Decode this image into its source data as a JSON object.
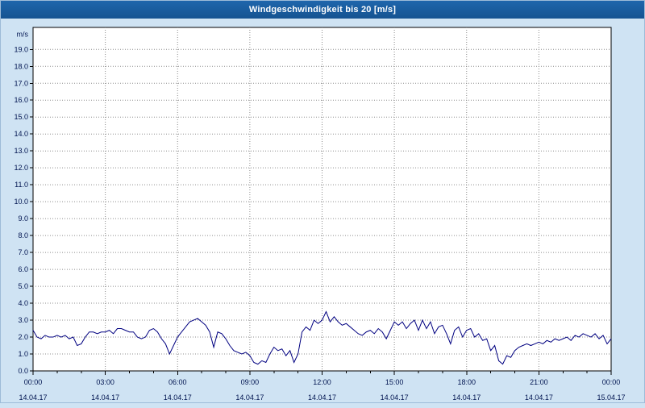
{
  "title_bar": {
    "label": "Windgeschwindigkeit bis 20 [m/s]"
  },
  "colors": {
    "page_background": "#cfe3f3",
    "title_bar_background": "#17599c",
    "title_text": "#ffffff",
    "plot_background": "#ffffff",
    "plot_border": "#000000",
    "grid": "#8c8c8c",
    "axis_text": "#001450",
    "line": "#000080"
  },
  "chart_data": {
    "type": "line",
    "title": "Windgeschwindigkeit bis 20 [m/s]",
    "ylabel": "m/s",
    "xlabel": "",
    "ylim": [
      0,
      20.3
    ],
    "y_tick_step": 1.0,
    "y_tick_labels": [
      "0.0",
      "1.0",
      "2.0",
      "3.0",
      "4.0",
      "5.0",
      "6.0",
      "7.0",
      "8.0",
      "9.0",
      "10.0",
      "11.0",
      "12.0",
      "13.0",
      "14.0",
      "15.0",
      "16.0",
      "17.0",
      "18.0",
      "19.0"
    ],
    "x_range_hours": [
      0,
      24
    ],
    "x_major_tick_hours": 3,
    "x_minor_tick_hours": 1,
    "x_ticks": [
      {
        "time": "00:00",
        "date": "14.04.17"
      },
      {
        "time": "03:00",
        "date": "14.04.17"
      },
      {
        "time": "06:00",
        "date": "14.04.17"
      },
      {
        "time": "09:00",
        "date": "14.04.17"
      },
      {
        "time": "12:00",
        "date": "14.04.17"
      },
      {
        "time": "15:00",
        "date": "14.04.17"
      },
      {
        "time": "18:00",
        "date": "14.04.17"
      },
      {
        "time": "21:00",
        "date": "14.04.17"
      },
      {
        "time": "00:00",
        "date": "15.04.17"
      }
    ],
    "grid": "dashed",
    "legend": "none",
    "sample_interval_minutes": 10,
    "values": [
      2.4,
      2.0,
      1.9,
      2.1,
      2.0,
      2.0,
      2.1,
      2.0,
      2.1,
      1.9,
      2.0,
      1.5,
      1.6,
      2.0,
      2.3,
      2.3,
      2.2,
      2.3,
      2.3,
      2.4,
      2.2,
      2.5,
      2.5,
      2.4,
      2.3,
      2.3,
      2.0,
      1.9,
      2.0,
      2.4,
      2.5,
      2.3,
      1.9,
      1.6,
      1.0,
      1.5,
      2.0,
      2.3,
      2.6,
      2.9,
      3.0,
      3.1,
      2.9,
      2.7,
      2.3,
      1.4,
      2.3,
      2.2,
      1.9,
      1.5,
      1.2,
      1.1,
      1.0,
      1.1,
      0.9,
      0.5,
      0.4,
      0.6,
      0.5,
      1.0,
      1.4,
      1.2,
      1.3,
      0.9,
      1.2,
      0.5,
      1.0,
      2.3,
      2.6,
      2.4,
      3.0,
      2.8,
      3.0,
      3.5,
      2.9,
      3.2,
      2.9,
      2.7,
      2.8,
      2.6,
      2.4,
      2.2,
      2.1,
      2.3,
      2.4,
      2.2,
      2.5,
      2.3,
      1.9,
      2.4,
      2.9,
      2.7,
      2.9,
      2.5,
      2.8,
      3.0,
      2.4,
      3.0,
      2.5,
      2.9,
      2.2,
      2.6,
      2.7,
      2.2,
      1.6,
      2.4,
      2.6,
      2.0,
      2.4,
      2.5,
      2.0,
      2.2,
      1.8,
      1.9,
      1.2,
      1.5,
      0.6,
      0.4,
      0.9,
      0.8,
      1.2,
      1.4,
      1.5,
      1.6,
      1.5,
      1.6,
      1.7,
      1.6,
      1.8,
      1.7,
      1.9,
      1.8,
      1.9,
      2.0,
      1.8,
      2.1,
      2.0,
      2.2,
      2.1,
      2.0,
      2.2,
      1.9,
      2.1,
      1.6,
      1.9
    ]
  }
}
